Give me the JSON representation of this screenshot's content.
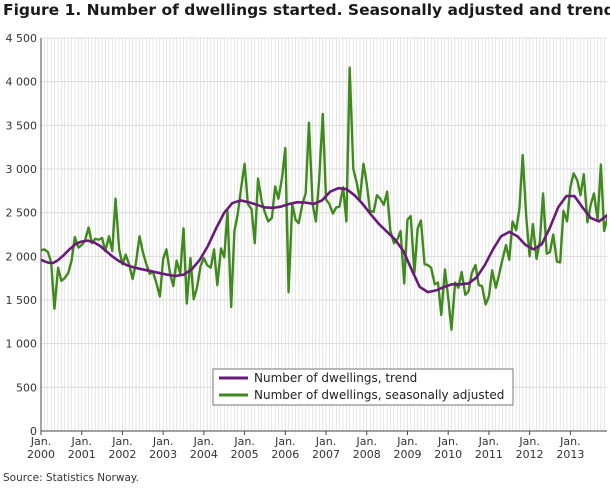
{
  "figure": {
    "title": "Figure 1. Number of dwellings started. Seasonally adjusted and trend",
    "source": "Source: Statistics Norway."
  },
  "colors": {
    "trend": "#6a1a7a",
    "seasonal": "#3f8a1c",
    "grid": "#d6d6d6",
    "axis": "#444444"
  },
  "chart_data": {
    "type": "line",
    "title": "Figure 1. Number of dwellings started. Seasonally adjusted and trend",
    "xlabel": "",
    "ylabel": "",
    "ylim": [
      0,
      4500
    ],
    "yticks": [
      0,
      500,
      1000,
      1500,
      2000,
      2500,
      3000,
      3500,
      4000,
      4500
    ],
    "ytick_labels": [
      "0",
      "500",
      "1 000",
      "1 500",
      "2 000",
      "2 500",
      "3 000",
      "3 500",
      "4 000",
      "4 500"
    ],
    "xlim": [
      2000.0,
      2013.9
    ],
    "xticks": [
      {
        "year": 2000,
        "month": "Jan.",
        "label": "2000"
      },
      {
        "year": 2001,
        "month": "Jan.",
        "label": "2001"
      },
      {
        "year": 2002,
        "month": "Jan.",
        "label": "2002"
      },
      {
        "year": 2003,
        "month": "Jan.",
        "label": "2003"
      },
      {
        "year": 2004,
        "month": "Jan.",
        "label": "2004"
      },
      {
        "year": 2005,
        "month": "Jan.",
        "label": "2005"
      },
      {
        "year": 2006,
        "month": "Jan.",
        "label": "2006"
      },
      {
        "year": 2007,
        "month": "Jan.",
        "label": "2007"
      },
      {
        "year": 2008,
        "month": "Jan.",
        "label": "2008"
      },
      {
        "year": 2009,
        "month": "Jan.",
        "label": "2009"
      },
      {
        "year": 2010,
        "month": "Jan.",
        "label": "2010"
      },
      {
        "year": 2011,
        "month": "Jan.",
        "label": "2011"
      },
      {
        "year": 2012,
        "month": "Jan.",
        "label": "2012"
      },
      {
        "year": 2013,
        "month": "Jan.",
        "label": "2013"
      }
    ],
    "grid": true,
    "legend": "bottom-center",
    "series": [
      {
        "name": "Number of dwellings, trend",
        "color": "#6a1a7a",
        "points": [
          [
            2000.0,
            1960
          ],
          [
            2000.1,
            1940
          ],
          [
            2000.2,
            1925
          ],
          [
            2000.3,
            1925
          ],
          [
            2000.4,
            1950
          ],
          [
            2000.55,
            2010
          ],
          [
            2000.7,
            2080
          ],
          [
            2000.85,
            2140
          ],
          [
            2001.0,
            2170
          ],
          [
            2001.15,
            2180
          ],
          [
            2001.3,
            2160
          ],
          [
            2001.45,
            2120
          ],
          [
            2001.6,
            2060
          ],
          [
            2001.75,
            2000
          ],
          [
            2001.9,
            1950
          ],
          [
            2002.1,
            1900
          ],
          [
            2002.3,
            1870
          ],
          [
            2002.5,
            1850
          ],
          [
            2002.7,
            1830
          ],
          [
            2002.9,
            1810
          ],
          [
            2003.1,
            1790
          ],
          [
            2003.3,
            1775
          ],
          [
            2003.5,
            1790
          ],
          [
            2003.7,
            1850
          ],
          [
            2003.9,
            1960
          ],
          [
            2004.1,
            2120
          ],
          [
            2004.3,
            2320
          ],
          [
            2004.5,
            2500
          ],
          [
            2004.7,
            2610
          ],
          [
            2004.9,
            2640
          ],
          [
            2005.1,
            2620
          ],
          [
            2005.3,
            2590
          ],
          [
            2005.5,
            2560
          ],
          [
            2005.7,
            2555
          ],
          [
            2005.9,
            2570
          ],
          [
            2006.1,
            2600
          ],
          [
            2006.3,
            2620
          ],
          [
            2006.5,
            2615
          ],
          [
            2006.7,
            2600
          ],
          [
            2006.9,
            2640
          ],
          [
            2007.1,
            2740
          ],
          [
            2007.3,
            2780
          ],
          [
            2007.5,
            2770
          ],
          [
            2007.7,
            2700
          ],
          [
            2007.9,
            2600
          ],
          [
            2008.1,
            2480
          ],
          [
            2008.3,
            2370
          ],
          [
            2008.5,
            2280
          ],
          [
            2008.7,
            2190
          ],
          [
            2008.9,
            2060
          ],
          [
            2009.1,
            1850
          ],
          [
            2009.3,
            1650
          ],
          [
            2009.5,
            1590
          ],
          [
            2009.7,
            1610
          ],
          [
            2009.9,
            1650
          ],
          [
            2010.1,
            1680
          ],
          [
            2010.3,
            1680
          ],
          [
            2010.5,
            1690
          ],
          [
            2010.7,
            1760
          ],
          [
            2010.9,
            1900
          ],
          [
            2011.1,
            2080
          ],
          [
            2011.3,
            2230
          ],
          [
            2011.5,
            2280
          ],
          [
            2011.7,
            2230
          ],
          [
            2011.9,
            2130
          ],
          [
            2012.1,
            2080
          ],
          [
            2012.3,
            2140
          ],
          [
            2012.5,
            2330
          ],
          [
            2012.7,
            2560
          ],
          [
            2012.9,
            2690
          ],
          [
            2013.1,
            2690
          ],
          [
            2013.3,
            2560
          ],
          [
            2013.5,
            2440
          ],
          [
            2013.7,
            2400
          ],
          [
            2013.85,
            2450
          ],
          [
            2013.95,
            2490
          ]
        ]
      },
      {
        "name": "Number of dwellings, seasonally adjusted",
        "color": "#3f8a1c",
        "points": [
          [
            2000.0,
            2070
          ],
          [
            2000.08,
            2080
          ],
          [
            2000.17,
            2050
          ],
          [
            2000.25,
            1930
          ],
          [
            2000.33,
            1400
          ],
          [
            2000.42,
            1870
          ],
          [
            2000.5,
            1720
          ],
          [
            2000.58,
            1750
          ],
          [
            2000.67,
            1810
          ],
          [
            2000.75,
            1950
          ],
          [
            2000.83,
            2220
          ],
          [
            2000.92,
            2100
          ],
          [
            2001.0,
            2130
          ],
          [
            2001.08,
            2180
          ],
          [
            2001.17,
            2330
          ],
          [
            2001.25,
            2150
          ],
          [
            2001.33,
            2200
          ],
          [
            2001.42,
            2190
          ],
          [
            2001.5,
            2210
          ],
          [
            2001.58,
            2060
          ],
          [
            2001.67,
            2230
          ],
          [
            2001.75,
            2060
          ],
          [
            2001.83,
            2660
          ],
          [
            2001.92,
            2080
          ],
          [
            2002.0,
            1910
          ],
          [
            2002.08,
            2020
          ],
          [
            2002.17,
            1900
          ],
          [
            2002.25,
            1740
          ],
          [
            2002.33,
            1920
          ],
          [
            2002.42,
            2230
          ],
          [
            2002.5,
            2050
          ],
          [
            2002.58,
            1920
          ],
          [
            2002.67,
            1800
          ],
          [
            2002.75,
            1820
          ],
          [
            2002.83,
            1700
          ],
          [
            2002.92,
            1540
          ],
          [
            2003.0,
            1970
          ],
          [
            2003.08,
            2080
          ],
          [
            2003.17,
            1800
          ],
          [
            2003.25,
            1660
          ],
          [
            2003.33,
            1950
          ],
          [
            2003.42,
            1800
          ],
          [
            2003.5,
            2320
          ],
          [
            2003.58,
            1460
          ],
          [
            2003.67,
            1980
          ],
          [
            2003.75,
            1510
          ],
          [
            2003.83,
            1640
          ],
          [
            2003.92,
            1890
          ],
          [
            2004.0,
            1980
          ],
          [
            2004.08,
            1900
          ],
          [
            2004.17,
            1870
          ],
          [
            2004.25,
            2080
          ],
          [
            2004.33,
            1670
          ],
          [
            2004.42,
            2090
          ],
          [
            2004.5,
            1990
          ],
          [
            2004.58,
            2520
          ],
          [
            2004.67,
            1420
          ],
          [
            2004.75,
            2290
          ],
          [
            2004.83,
            2480
          ],
          [
            2004.92,
            2800
          ],
          [
            2005.0,
            3060
          ],
          [
            2005.08,
            2600
          ],
          [
            2005.17,
            2540
          ],
          [
            2005.25,
            2150
          ],
          [
            2005.33,
            2890
          ],
          [
            2005.42,
            2630
          ],
          [
            2005.5,
            2500
          ],
          [
            2005.58,
            2400
          ],
          [
            2005.67,
            2440
          ],
          [
            2005.75,
            2800
          ],
          [
            2005.83,
            2660
          ],
          [
            2005.92,
            2900
          ],
          [
            2006.0,
            3240
          ],
          [
            2006.08,
            1590
          ],
          [
            2006.17,
            2600
          ],
          [
            2006.25,
            2420
          ],
          [
            2006.33,
            2380
          ],
          [
            2006.42,
            2600
          ],
          [
            2006.5,
            2720
          ],
          [
            2006.58,
            3530
          ],
          [
            2006.67,
            2600
          ],
          [
            2006.75,
            2400
          ],
          [
            2006.83,
            2870
          ],
          [
            2006.92,
            3630
          ],
          [
            2007.0,
            2650
          ],
          [
            2007.08,
            2600
          ],
          [
            2007.17,
            2490
          ],
          [
            2007.25,
            2560
          ],
          [
            2007.33,
            2570
          ],
          [
            2007.42,
            2790
          ],
          [
            2007.5,
            2400
          ],
          [
            2007.58,
            4160
          ],
          [
            2007.67,
            3000
          ],
          [
            2007.75,
            2850
          ],
          [
            2007.83,
            2650
          ],
          [
            2007.92,
            3060
          ],
          [
            2008.0,
            2830
          ],
          [
            2008.08,
            2520
          ],
          [
            2008.17,
            2510
          ],
          [
            2008.25,
            2700
          ],
          [
            2008.33,
            2660
          ],
          [
            2008.42,
            2590
          ],
          [
            2008.5,
            2740
          ],
          [
            2008.58,
            2290
          ],
          [
            2008.67,
            2150
          ],
          [
            2008.75,
            2190
          ],
          [
            2008.83,
            2290
          ],
          [
            2008.92,
            1690
          ],
          [
            2009.0,
            2420
          ],
          [
            2009.08,
            2460
          ],
          [
            2009.17,
            1810
          ],
          [
            2009.25,
            2320
          ],
          [
            2009.33,
            2410
          ],
          [
            2009.42,
            1910
          ],
          [
            2009.5,
            1900
          ],
          [
            2009.58,
            1870
          ],
          [
            2009.67,
            1680
          ],
          [
            2009.75,
            1700
          ],
          [
            2009.83,
            1330
          ],
          [
            2009.92,
            1850
          ],
          [
            2010.0,
            1530
          ],
          [
            2010.08,
            1160
          ],
          [
            2010.17,
            1700
          ],
          [
            2010.25,
            1640
          ],
          [
            2010.33,
            1820
          ],
          [
            2010.42,
            1560
          ],
          [
            2010.5,
            1600
          ],
          [
            2010.58,
            1810
          ],
          [
            2010.67,
            1900
          ],
          [
            2010.75,
            1670
          ],
          [
            2010.83,
            1660
          ],
          [
            2010.92,
            1450
          ],
          [
            2011.0,
            1540
          ],
          [
            2011.08,
            1840
          ],
          [
            2011.17,
            1640
          ],
          [
            2011.25,
            1790
          ],
          [
            2011.33,
            1960
          ],
          [
            2011.42,
            2130
          ],
          [
            2011.5,
            1960
          ],
          [
            2011.58,
            2400
          ],
          [
            2011.67,
            2300
          ],
          [
            2011.75,
            2550
          ],
          [
            2011.83,
            3160
          ],
          [
            2011.92,
            2430
          ],
          [
            2012.0,
            2000
          ],
          [
            2012.08,
            2370
          ],
          [
            2012.17,
            1970
          ],
          [
            2012.25,
            2170
          ],
          [
            2012.33,
            2720
          ],
          [
            2012.42,
            2030
          ],
          [
            2012.5,
            2050
          ],
          [
            2012.58,
            2250
          ],
          [
            2012.67,
            1940
          ],
          [
            2012.75,
            1930
          ],
          [
            2012.83,
            2520
          ],
          [
            2012.92,
            2400
          ],
          [
            2013.0,
            2790
          ],
          [
            2013.08,
            2950
          ],
          [
            2013.17,
            2870
          ],
          [
            2013.25,
            2700
          ],
          [
            2013.33,
            2940
          ],
          [
            2013.42,
            2390
          ],
          [
            2013.5,
            2590
          ],
          [
            2013.58,
            2720
          ],
          [
            2013.67,
            2420
          ],
          [
            2013.75,
            3050
          ],
          [
            2013.83,
            2290
          ],
          [
            2013.92,
            2460
          ],
          [
            2014.0,
            2240
          ],
          [
            2014.08,
            2480
          ],
          [
            2014.17,
            2140
          ],
          [
            2014.25,
            2560
          ],
          [
            2014.33,
            2540
          ],
          [
            2014.42,
            2650
          ],
          [
            2014.5,
            2500
          ]
        ]
      }
    ]
  }
}
